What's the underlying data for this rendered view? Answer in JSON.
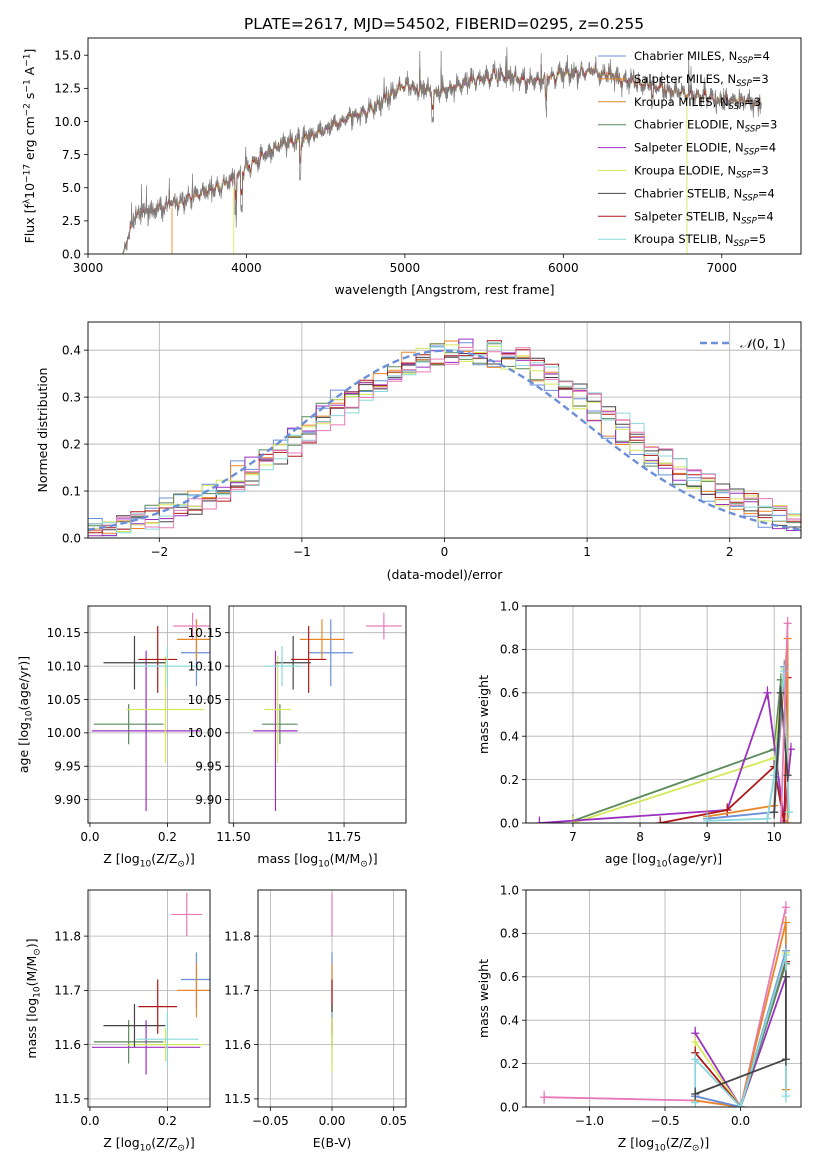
{
  "figure": {
    "title": "PLATE=2617, MJD=54502, FIBERID=0295, z=0.255"
  },
  "colors": {
    "Chabrier MILES": "#6b8fd8",
    "Salpeter MILES": "#e8872a",
    "Kroupa MILES": "#d38a2a",
    "Chabrier ELODIE": "#5a8a5a",
    "Salpeter ELODIE": "#9b30c0",
    "Kroupa ELODIE": "#d6e85a",
    "Chabrier STELIB": "#444444",
    "Salpeter STELIB": "#b01818",
    "Kroupa STELIB": "#8ad8dc",
    "extra": "#e87ab8",
    "gaussian": "#6b8fd8"
  },
  "chart_data": [
    {
      "id": "spectrum",
      "type": "line",
      "title": "PLATE=2617, MJD=54502, FIBERID=0295, z=0.255",
      "xlabel": "wavelength [Angstrom, rest frame]",
      "ylabel_parts": [
        "Flux [f",
        "λ",
        "10",
        "−17",
        " erg cm",
        "−2",
        " s",
        "−1",
        " A",
        "−1",
        "]"
      ],
      "xlim": [
        3000,
        7500
      ],
      "ylim": [
        0,
        16.3
      ],
      "xticks": [
        3000,
        4000,
        5000,
        6000,
        7000
      ],
      "yticks": [
        0.0,
        2.5,
        5.0,
        7.5,
        10.0,
        12.5,
        15.0
      ],
      "ytick_labels": [
        "0.0",
        "2.5",
        "5.0",
        "7.5",
        "10.0",
        "12.5",
        "15.0"
      ],
      "legend_position": "upper-right",
      "data_range_x": [
        3220,
        7250
      ],
      "continuum": {
        "x": [
          3220,
          3300,
          3500,
          3700,
          3900,
          4000,
          4200,
          4400,
          4600,
          4800,
          5000,
          5200,
          5400,
          5600,
          5800,
          6000,
          6200,
          6400,
          6600,
          6800,
          7000,
          7250
        ],
        "y": [
          0,
          3.0,
          3.6,
          4.5,
          5.5,
          6.5,
          8.2,
          8.8,
          10.0,
          11.0,
          12.8,
          12.2,
          13.0,
          13.5,
          13.0,
          13.6,
          13.8,
          13.2,
          12.6,
          12.0,
          11.6,
          11.4
        ]
      },
      "series": [
        {
          "name": "Chabrier MILES",
          "nssp": "4"
        },
        {
          "name": "Salpeter MILES",
          "nssp": "3"
        },
        {
          "name": "Kroupa MILES",
          "nssp": "3"
        },
        {
          "name": "Chabrier ELODIE",
          "nssp": "3"
        },
        {
          "name": "Salpeter ELODIE",
          "nssp": "4"
        },
        {
          "name": "Kroupa ELODIE",
          "nssp": "3"
        },
        {
          "name": "Chabrier STELIB",
          "nssp": "4"
        },
        {
          "name": "Salpeter STELIB",
          "nssp": "4"
        },
        {
          "name": "Kroupa STELIB",
          "nssp": "5"
        }
      ]
    },
    {
      "id": "residuals",
      "type": "histogram",
      "xlabel": "(data-model)/error",
      "ylabel": "Normed distribution",
      "xlim": [
        -2.5,
        2.5
      ],
      "ylim": [
        0,
        0.46
      ],
      "xticks": [
        -2,
        -1,
        0,
        1,
        2
      ],
      "xtick_labels": [
        "−2",
        "−1",
        "0",
        "1",
        "2"
      ],
      "yticks": [
        0.0,
        0.1,
        0.2,
        0.3,
        0.4
      ],
      "ytick_labels": [
        "0.0",
        "0.1",
        "0.2",
        "0.3",
        "0.4"
      ],
      "grid": true,
      "gaussian_label_parts": [
        "𝒩",
        "(0, 1)"
      ],
      "legend_position": "upper-right",
      "bin_width": 0.1
    },
    {
      "id": "age_vs_Z",
      "type": "errorbar",
      "xlabel_parts": [
        "Z [log",
        "10",
        "(Z/Z",
        "⊙",
        ")]"
      ],
      "ylabel_parts": [
        "age  [log",
        "10",
        "(age/yr)]"
      ],
      "xlim": [
        -0.005,
        0.31
      ],
      "ylim": [
        9.865,
        10.19
      ],
      "xticks": [
        0.0,
        0.2
      ],
      "xtick_labels": [
        "0.0",
        "0.2"
      ],
      "yticks": [
        9.9,
        9.95,
        10.0,
        10.05,
        10.1,
        10.15
      ],
      "ytick_labels": [
        "9.90",
        "9.95",
        "10.00",
        "10.05",
        "10.10",
        "10.15"
      ],
      "points": [
        {
          "series": "Chabrier MILES",
          "x": 0.275,
          "y": 10.12,
          "xerr": 0.04,
          "yerr": 0.05
        },
        {
          "series": "Salpeter MILES",
          "x": 0.275,
          "y": 10.14,
          "xerr": 0.05,
          "yerr": 0.03
        },
        {
          "series": "extra",
          "x": 0.265,
          "y": 10.16,
          "xerr": 0.05,
          "yerr": 0.02
        },
        {
          "series": "Chabrier ELODIE",
          "x": 0.1,
          "y": 10.013,
          "xerr": 0.09,
          "yerr": 0.03
        },
        {
          "series": "Salpeter ELODIE",
          "x": 0.145,
          "y": 10.003,
          "xerr": 0.14,
          "yerr": 0.12
        },
        {
          "series": "Kroupa ELODIE",
          "x": 0.195,
          "y": 10.035,
          "xerr": 0.1,
          "yerr": 0.08
        },
        {
          "series": "Chabrier STELIB",
          "x": 0.115,
          "y": 10.105,
          "xerr": 0.08,
          "yerr": 0.04
        },
        {
          "series": "Salpeter STELIB",
          "x": 0.175,
          "y": 10.11,
          "xerr": 0.05,
          "yerr": 0.05
        },
        {
          "series": "Kroupa STELIB",
          "x": 0.2,
          "y": 10.1,
          "xerr": 0.08,
          "yerr": 0.03
        }
      ]
    },
    {
      "id": "age_vs_mass",
      "type": "errorbar",
      "xlabel_parts": [
        "mass [log",
        "10",
        "(M/M",
        "⊙",
        ")]"
      ],
      "xlim": [
        11.49,
        11.89
      ],
      "ylim": [
        9.865,
        10.19
      ],
      "xticks": [
        11.5,
        11.75
      ],
      "xtick_labels": [
        "11.50",
        "11.75"
      ],
      "yticks": [
        9.9,
        9.95,
        10.0,
        10.05,
        10.1,
        10.15
      ],
      "ytick_labels": [
        "9.90",
        "9.95",
        "10.00",
        "10.05",
        "10.10",
        "10.15"
      ],
      "points": [
        {
          "series": "Chabrier MILES",
          "x": 11.72,
          "y": 10.12,
          "xerr": 0.05,
          "yerr": 0.05
        },
        {
          "series": "Salpeter MILES",
          "x": 11.7,
          "y": 10.14,
          "xerr": 0.05,
          "yerr": 0.03
        },
        {
          "series": "extra",
          "x": 11.84,
          "y": 10.16,
          "xerr": 0.04,
          "yerr": 0.02
        },
        {
          "series": "Chabrier ELODIE",
          "x": 11.605,
          "y": 10.013,
          "xerr": 0.04,
          "yerr": 0.03
        },
        {
          "series": "Salpeter ELODIE",
          "x": 11.595,
          "y": 10.003,
          "xerr": 0.05,
          "yerr": 0.12
        },
        {
          "series": "Kroupa ELODIE",
          "x": 11.6,
          "y": 10.035,
          "xerr": 0.03,
          "yerr": 0.08
        },
        {
          "series": "Chabrier STELIB",
          "x": 11.635,
          "y": 10.105,
          "xerr": 0.04,
          "yerr": 0.04
        },
        {
          "series": "Salpeter STELIB",
          "x": 11.67,
          "y": 10.11,
          "xerr": 0.04,
          "yerr": 0.05
        },
        {
          "series": "Kroupa STELIB",
          "x": 11.61,
          "y": 10.1,
          "xerr": 0.04,
          "yerr": 0.03
        }
      ]
    },
    {
      "id": "mass_weight_vs_age",
      "type": "line",
      "xlabel_parts": [
        "age  [log",
        "10",
        "(age/yr)]"
      ],
      "ylabel": "mass weight",
      "xlim": [
        6.3,
        10.4
      ],
      "ylim": [
        0,
        1.0
      ],
      "xticks": [
        7,
        8,
        9,
        10
      ],
      "xtick_labels": [
        "7",
        "8",
        "9",
        "10"
      ],
      "yticks": [
        0.0,
        0.2,
        0.4,
        0.6,
        0.8,
        1.0
      ],
      "ytick_labels": [
        "0.0",
        "0.2",
        "0.4",
        "0.6",
        "0.8",
        "1.0"
      ],
      "grid": true,
      "series": [
        {
          "name": "Chabrier ELODIE",
          "x": [
            7.0,
            10.0,
            10.1
          ],
          "y": [
            0.01,
            0.34,
            0.66
          ]
        },
        {
          "name": "Kroupa ELODIE",
          "x": [
            7.0,
            10.0,
            10.15
          ],
          "y": [
            0.0,
            0.3,
            0.71
          ]
        },
        {
          "name": "Salpeter ELODIE",
          "x": [
            6.5,
            9.3,
            9.9,
            10.15,
            10.25
          ],
          "y": [
            0.0,
            0.06,
            0.6,
            0.01,
            0.34
          ]
        },
        {
          "name": "Salpeter STELIB",
          "x": [
            8.3,
            9.3,
            10.0,
            10.15,
            10.2
          ],
          "y": [
            0.0,
            0.06,
            0.26,
            0.0,
            0.67
          ]
        },
        {
          "name": "Salpeter MILES",
          "x": [
            9.0,
            10.0,
            10.2,
            10.2
          ],
          "y": [
            0.03,
            0.08,
            0.85,
            0.0
          ]
        },
        {
          "name": "Chabrier MILES",
          "x": [
            9.0,
            10.0,
            10.15
          ],
          "y": [
            0.02,
            0.05,
            0.72
          ]
        },
        {
          "name": "Kroupa STELIB",
          "x": [
            9.0,
            9.9,
            10.0,
            10.15,
            10.22
          ],
          "y": [
            0.01,
            0.02,
            0.22,
            0.7,
            0.05
          ]
        },
        {
          "name": "Chabrier STELIB",
          "x": [
            10.0,
            10.1,
            10.2
          ],
          "y": [
            0.05,
            0.6,
            0.22
          ]
        },
        {
          "name": "extra",
          "x": [
            10.1,
            10.2
          ],
          "y": [
            0.0,
            0.92
          ]
        }
      ]
    },
    {
      "id": "mass_vs_Z",
      "type": "errorbar",
      "xlabel_parts": [
        "Z [log",
        "10",
        "(Z/Z",
        "⊙",
        ")]"
      ],
      "ylabel_parts": [
        "mass [log",
        "10",
        "(M/M",
        "⊙",
        ")]"
      ],
      "xlim": [
        -0.005,
        0.31
      ],
      "ylim": [
        11.485,
        11.885
      ],
      "xticks": [
        0.0,
        0.2
      ],
      "xtick_labels": [
        "0.0",
        "0.2"
      ],
      "yticks": [
        11.5,
        11.6,
        11.7,
        11.8
      ],
      "ytick_labels": [
        "11.5",
        "11.6",
        "11.7",
        "11.8"
      ],
      "points": [
        {
          "series": "Chabrier MILES",
          "x": 0.275,
          "y": 11.72,
          "xerr": 0.04,
          "yerr": 0.05
        },
        {
          "series": "Salpeter MILES",
          "x": 0.275,
          "y": 11.7,
          "xerr": 0.05,
          "yerr": 0.05
        },
        {
          "series": "extra",
          "x": 0.25,
          "y": 11.84,
          "xerr": 0.04,
          "yerr": 0.04
        },
        {
          "series": "Chabrier ELODIE",
          "x": 0.1,
          "y": 11.605,
          "xerr": 0.09,
          "yerr": 0.04
        },
        {
          "series": "Salpeter ELODIE",
          "x": 0.145,
          "y": 11.595,
          "xerr": 0.14,
          "yerr": 0.05
        },
        {
          "series": "Kroupa ELODIE",
          "x": 0.195,
          "y": 11.6,
          "xerr": 0.1,
          "yerr": 0.03
        },
        {
          "series": "Chabrier STELIB",
          "x": 0.115,
          "y": 11.635,
          "xerr": 0.08,
          "yerr": 0.04
        },
        {
          "series": "Salpeter STELIB",
          "x": 0.175,
          "y": 11.67,
          "xerr": 0.05,
          "yerr": 0.05
        },
        {
          "series": "Kroupa STELIB",
          "x": 0.2,
          "y": 11.61,
          "xerr": 0.08,
          "yerr": 0.05
        }
      ]
    },
    {
      "id": "mass_vs_ebv",
      "type": "errorbar",
      "xlabel": "E(B-V)",
      "xlim": [
        -0.06,
        0.06
      ],
      "ylim": [
        11.485,
        11.885
      ],
      "xticks": [
        -0.05,
        0.0,
        0.05
      ],
      "xtick_labels": [
        "−0.05",
        "0.00",
        "0.05"
      ],
      "yticks": [
        11.5,
        11.6,
        11.7,
        11.8
      ],
      "ytick_labels": [
        "11.5",
        "11.6",
        "11.7",
        "11.8"
      ],
      "points": [
        {
          "series": "extra",
          "x": 0.0,
          "y": 11.84,
          "xerr": 0.0,
          "yerr": 0.04
        },
        {
          "series": "Chabrier MILES",
          "x": 0.0,
          "y": 11.72,
          "xerr": 0.0,
          "yerr": 0.05
        },
        {
          "series": "Salpeter MILES",
          "x": 0.0,
          "y": 11.7,
          "xerr": 0.0,
          "yerr": 0.05
        },
        {
          "series": "Salpeter STELIB",
          "x": 0.0,
          "y": 11.67,
          "xerr": 0.0,
          "yerr": 0.05
        },
        {
          "series": "Chabrier STELIB",
          "x": 0.0,
          "y": 11.635,
          "xerr": 0.0,
          "yerr": 0.04
        },
        {
          "series": "Kroupa STELIB",
          "x": 0.0,
          "y": 11.61,
          "xerr": 0.0,
          "yerr": 0.05
        },
        {
          "series": "Kroupa ELODIE",
          "x": 0.0,
          "y": 11.6,
          "xerr": 0.0,
          "yerr": 0.05
        }
      ]
    },
    {
      "id": "mass_weight_vs_Z",
      "type": "line",
      "xlabel_parts": [
        "Z [log",
        "10",
        "(Z/Z",
        "⊙",
        ")]"
      ],
      "ylabel": "mass weight",
      "xlim": [
        -1.42,
        0.4
      ],
      "ylim": [
        0,
        1.0
      ],
      "xticks": [
        -1.0,
        -0.5,
        0.0
      ],
      "xtick_labels": [
        "−1.0",
        "−0.5",
        "0.0"
      ],
      "yticks": [
        0.0,
        0.2,
        0.4,
        0.6,
        0.8,
        1.0
      ],
      "ytick_labels": [
        "0.0",
        "0.2",
        "0.4",
        "0.6",
        "0.8",
        "1.0"
      ],
      "grid": true,
      "series": [
        {
          "name": "extra",
          "x": [
            -1.3,
            -0.3,
            0.0,
            0.3
          ],
          "y": [
            0.045,
            0.03,
            0.0,
            0.92
          ]
        },
        {
          "name": "Salpeter MILES",
          "x": [
            -0.3,
            0.0,
            0.3,
            0.3
          ],
          "y": [
            0.03,
            0.0,
            0.85,
            0.08
          ]
        },
        {
          "name": "Salpeter ELODIE",
          "x": [
            -0.3,
            0.0,
            0.3
          ],
          "y": [
            0.34,
            0.0,
            0.6
          ]
        },
        {
          "name": "Kroupa ELODIE",
          "x": [
            -0.3,
            0.0,
            0.3
          ],
          "y": [
            0.3,
            0.0,
            0.71
          ]
        },
        {
          "name": "Salpeter STELIB",
          "x": [
            -0.3,
            0.0,
            0.3
          ],
          "y": [
            0.25,
            0.0,
            0.67
          ]
        },
        {
          "name": "Chabrier ELODIE",
          "x": [
            -0.3,
            0.0,
            0.3
          ],
          "y": [
            0.05,
            0.0,
            0.66
          ]
        },
        {
          "name": "Chabrier MILES",
          "x": [
            -0.3,
            0.0,
            0.3
          ],
          "y": [
            0.05,
            0.0,
            0.72
          ]
        },
        {
          "name": "Kroupa STELIB",
          "x": [
            -0.3,
            -0.3,
            0.0,
            0.3,
            0.3
          ],
          "y": [
            0.02,
            0.22,
            0.0,
            0.7,
            0.05
          ]
        },
        {
          "name": "Chabrier STELIB",
          "x": [
            -0.3,
            0.3,
            0.3
          ],
          "y": [
            0.06,
            0.22,
            0.6
          ]
        }
      ]
    }
  ]
}
